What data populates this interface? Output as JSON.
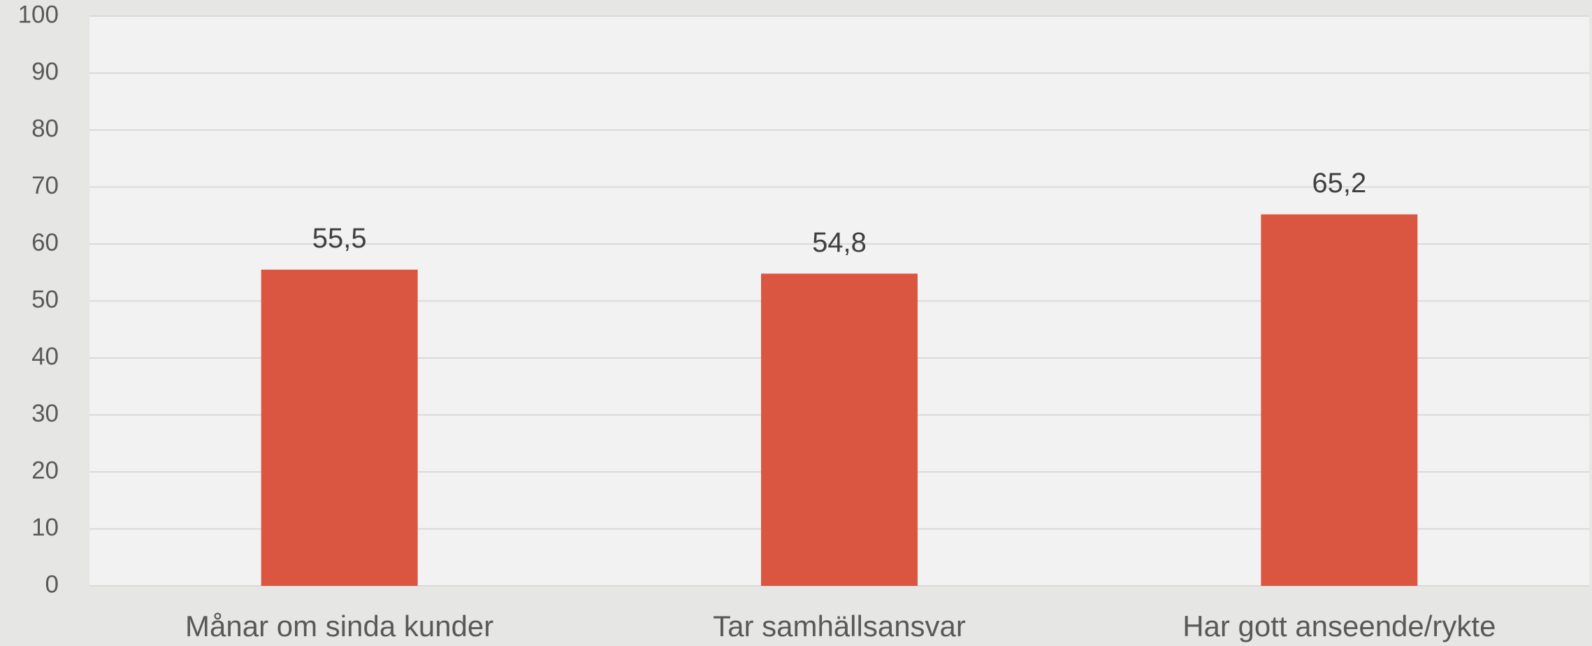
{
  "chart_data": {
    "type": "bar",
    "categories": [
      "Månar om sinda kunder",
      "Tar samhällsansvar",
      "Har gott anseende/rykte"
    ],
    "values": [
      55.5,
      54.8,
      65.2
    ],
    "value_labels": [
      "55,5",
      "54,8",
      "65,2"
    ],
    "color": "#db5640",
    "ylim": [
      0,
      100
    ],
    "yticks": [
      0,
      10,
      20,
      30,
      40,
      50,
      60,
      70,
      80,
      90,
      100
    ],
    "grid": true
  }
}
